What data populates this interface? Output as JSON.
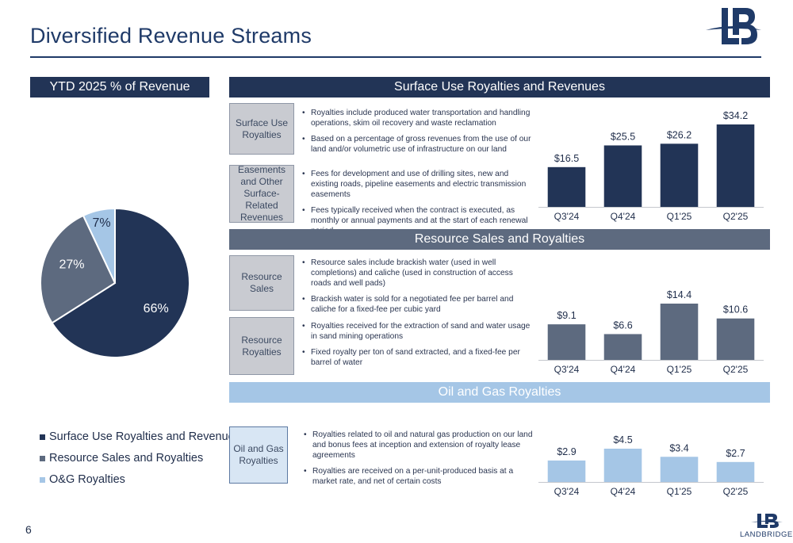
{
  "page": {
    "title": "Diversified Revenue Streams",
    "page_number": "6",
    "brand_name": "LANDBRIDGE"
  },
  "colors": {
    "navy": "#223456",
    "slate": "#5d6a7f",
    "light_blue": "#a5c6e6"
  },
  "left_panel": {
    "header": "YTD 2025 % of Revenue",
    "legend": [
      {
        "label": "Surface Use Royalties and Revenues",
        "color": "#223456"
      },
      {
        "label": "Resource Sales and Royalties",
        "color": "#5d6a7f"
      },
      {
        "label": "O&G Royalties",
        "color": "#a5c6e6"
      }
    ]
  },
  "sections": {
    "surface": {
      "header": "Surface Use Royalties and Revenues",
      "boxes": [
        {
          "label": "Surface Use Royalties",
          "bullets": [
            "Royalties include produced water transportation and handling operations, skim oil recovery and waste reclamation",
            "Based on a percentage of gross revenues from the use of our land and/or volumetric use of infrastructure on our land"
          ]
        },
        {
          "label": "Easements and Other Surface-Related Revenues",
          "bullets": [
            "Fees for development and use of drilling sites, new and existing roads, pipeline easements and electric transmission easements",
            "Fees typically received when the contract is executed, as monthly or annual payments and at the start of each renewal period"
          ]
        }
      ]
    },
    "resource": {
      "header": "Resource Sales and Royalties",
      "boxes": [
        {
          "label": "Resource Sales",
          "bullets": [
            "Resource sales include brackish water (used in well completions) and caliche (used in construction of access roads and well pads)",
            "Brackish water is sold for a negotiated fee per barrel and caliche for a fixed-fee per cubic yard"
          ]
        },
        {
          "label": "Resource Royalties",
          "bullets": [
            "Royalties received for the extraction of sand and water usage in sand mining operations",
            "Fixed royalty per ton of sand extracted, and a fixed-fee per barrel of water"
          ]
        }
      ]
    },
    "oilgas": {
      "header": "Oil and Gas Royalties",
      "boxes": [
        {
          "label": "Oil and Gas Royalties",
          "bullets": [
            "Royalties related to oil and natural gas production on our land and bonus fees at inception and extension of royalty lease agreements",
            "Royalties are received on a per-unit-produced basis at a market rate, and net of certain costs"
          ]
        }
      ]
    }
  },
  "chart_data": [
    {
      "type": "pie",
      "title": "YTD 2025 % of Revenue",
      "categories": [
        "Surface Use Royalties and Revenues",
        "Resource Sales and Royalties",
        "O&G Royalties"
      ],
      "values": [
        66,
        27,
        7
      ],
      "data_labels": [
        "66%",
        "27%",
        "7%"
      ],
      "colors": [
        "#223456",
        "#5d6a7f",
        "#a5c6e6"
      ],
      "legend": "bottom"
    },
    {
      "type": "bar",
      "categories": [
        "Q3'24",
        "Q4'24",
        "Q1'25",
        "Q2'25"
      ],
      "values": [
        16.5,
        25.5,
        26.2,
        34.2
      ],
      "data_labels": [
        "$16.5",
        "$25.5",
        "$26.2",
        "$34.2"
      ],
      "color": "#223456",
      "ylim": [
        0,
        34.2
      ],
      "grid": false
    },
    {
      "type": "bar",
      "categories": [
        "Q3'24",
        "Q4'24",
        "Q1'25",
        "Q2'25"
      ],
      "values": [
        9.1,
        6.6,
        14.4,
        10.6
      ],
      "data_labels": [
        "$9.1",
        "$6.6",
        "$14.4",
        "$10.6"
      ],
      "color": "#5d6a7f",
      "ylim": [
        0,
        14.4
      ],
      "grid": false
    },
    {
      "type": "bar",
      "categories": [
        "Q3'24",
        "Q4'24",
        "Q1'25",
        "Q2'25"
      ],
      "values": [
        2.9,
        4.5,
        3.4,
        2.7
      ],
      "data_labels": [
        "$2.9",
        "$4.5",
        "$3.4",
        "$2.7"
      ],
      "color": "#a5c6e6",
      "ylim": [
        0,
        4.5
      ],
      "grid": false
    }
  ]
}
